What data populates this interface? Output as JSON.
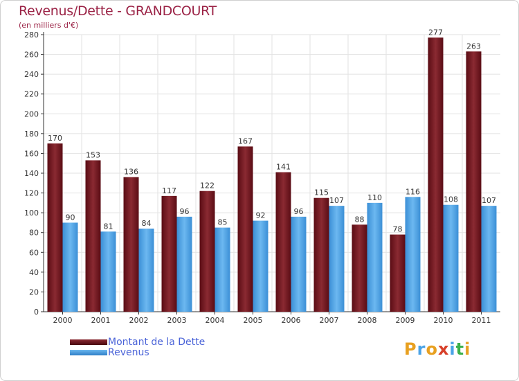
{
  "header": {
    "title": "Revenus/Dette - GRANDCOURT",
    "subtitle": "(en milliers d'€)"
  },
  "chart_data": {
    "type": "bar",
    "title": "Revenus/Dette - GRANDCOURT",
    "ylabel": "(en milliers d'€)",
    "xlabel": "",
    "categories": [
      "2000",
      "2001",
      "2002",
      "2003",
      "2004",
      "2005",
      "2006",
      "2007",
      "2008",
      "2009",
      "2010",
      "2011"
    ],
    "series": [
      {
        "name": "Montant de la Dette",
        "color": "#7a1a22",
        "values": [
          170,
          153,
          136,
          117,
          122,
          167,
          141,
          115,
          88,
          78,
          277,
          263
        ]
      },
      {
        "name": "Revenus",
        "color": "#4aa3e6",
        "values": [
          90,
          81,
          84,
          96,
          85,
          92,
          96,
          107,
          110,
          116,
          108,
          107
        ]
      }
    ],
    "ylim": [
      0,
      280
    ],
    "yticks": [
      0,
      20,
      40,
      60,
      80,
      100,
      120,
      140,
      160,
      180,
      200,
      220,
      240,
      260,
      280
    ],
    "grid": true,
    "legend": "bottom-left"
  },
  "legend": {
    "items": [
      {
        "label": "Montant de la Dette",
        "color": "#6b0f18"
      },
      {
        "label": "Revenus",
        "color": "#4aa3e6"
      }
    ]
  },
  "logo": {
    "letters": [
      "P",
      "r",
      "o",
      "x",
      "i",
      "t",
      "i"
    ],
    "colors": [
      "#e8a020",
      "#4aa3e6",
      "#e8a020",
      "#d8402a",
      "#4aa3e6",
      "#3bb04a",
      "#e8a020"
    ]
  }
}
